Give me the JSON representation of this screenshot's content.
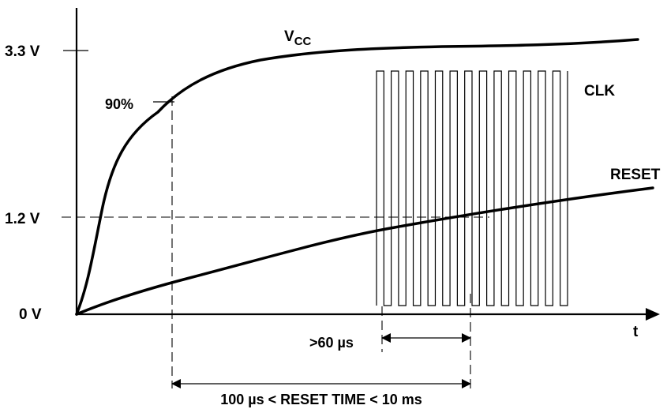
{
  "axis": {
    "y_labels": {
      "v33": "3.3 V",
      "v12": "1.2 V",
      "v0": "0 V"
    },
    "x_label": "t"
  },
  "signals": {
    "vcc_label_main": "V",
    "vcc_label_sub": "CC",
    "clk_label": "CLK",
    "reset_label": "RESET",
    "percent_label": "90%"
  },
  "timing": {
    "min_pulse_label": ">60 µs",
    "reset_time_label": "100 µs < RESET TIME < 10 ms"
  },
  "clk": {
    "pulse_count": 13
  }
}
